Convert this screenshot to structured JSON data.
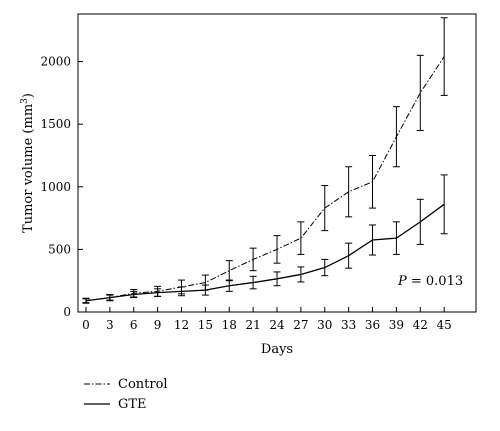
{
  "chart_data": {
    "type": "line",
    "title": "",
    "xlabel": "Days",
    "ylabel_text": "Tumor volume (mm",
    "ylabel_sup": "3",
    "ylabel_close": ")",
    "x": [
      0,
      3,
      6,
      9,
      12,
      15,
      18,
      21,
      24,
      27,
      30,
      33,
      36,
      39,
      42,
      45
    ],
    "xticks": [
      0,
      3,
      6,
      9,
      12,
      15,
      18,
      21,
      24,
      27,
      30,
      33,
      36,
      39,
      42,
      45
    ],
    "yticks": [
      0,
      500,
      1000,
      1500,
      2000
    ],
    "xlim": [
      -1,
      49
    ],
    "ylim": [
      0,
      2380
    ],
    "grid": false,
    "legend_position": "bottom-left, below plot",
    "series": [
      {
        "name": "Control",
        "line_style": "dash-dot",
        "values": [
          90,
          115,
          150,
          165,
          200,
          235,
          330,
          420,
          500,
          590,
          830,
          960,
          1040,
          1400,
          1750,
          2040
        ],
        "errors": [
          20,
          25,
          30,
          40,
          55,
          60,
          80,
          90,
          110,
          130,
          180,
          200,
          210,
          240,
          300,
          310
        ]
      },
      {
        "name": "GTE",
        "line_style": "solid",
        "values": [
          90,
          115,
          140,
          155,
          165,
          175,
          210,
          235,
          265,
          300,
          355,
          450,
          575,
          590,
          720,
          860
        ],
        "errors": [
          15,
          20,
          25,
          30,
          35,
          40,
          45,
          50,
          55,
          60,
          65,
          100,
          120,
          130,
          180,
          235
        ]
      }
    ],
    "annotations": [
      {
        "italic_text": "P",
        "text": " = 0.013"
      }
    ]
  }
}
